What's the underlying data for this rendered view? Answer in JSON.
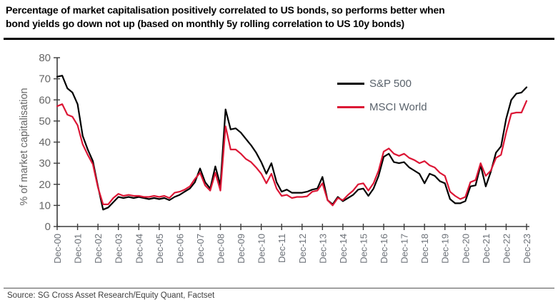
{
  "title_line1": "Percentage of market capitalisation positively correlated to US bonds, so performs better when",
  "title_line2": "bond yields go down not up (based on monthly 5y rolling correlation to US 10y bonds)",
  "source": "Source: SG Cross Asset Research/Equity Quant, Factset",
  "colors": {
    "sp500": "#000000",
    "msci_world": "#dc1635",
    "axis": "#3c3c3c"
  },
  "chart_data": {
    "type": "line",
    "title": "Percentage of market capitalisation positively correlated to US bonds",
    "ylabel": "% of market capitalisation",
    "ylim": [
      0,
      80
    ],
    "yticks": [
      0,
      10,
      20,
      30,
      40,
      50,
      60,
      70,
      80
    ],
    "grid": false,
    "legend_position": "upper-center",
    "x_start": "Dec-00",
    "x_end": "Dec-23",
    "sampling": "quarterly",
    "x_tick_labels": [
      "Dec-00",
      "Dec-01",
      "Dec-02",
      "Dec-03",
      "Dec-04",
      "Dec-05",
      "Dec-06",
      "Dec-07",
      "Dec-08",
      "Dec-09",
      "Dec-10",
      "Dec-11",
      "Dec-12",
      "Dec-13",
      "Dec-14",
      "Dec-15",
      "Dec-16",
      "Dec-17",
      "Dec-18",
      "Dec-19",
      "Dec-20",
      "Dec-21",
      "Dec-22",
      "Dec-23"
    ],
    "series": [
      {
        "name": "S&P 500",
        "color": "#000000",
        "values": [
          71,
          71.5,
          65.5,
          63.5,
          58,
          43,
          36.5,
          31,
          19,
          8,
          9,
          11.5,
          14,
          13.5,
          14,
          13.5,
          14,
          13.5,
          13,
          13.5,
          13,
          13.5,
          12.5,
          14,
          15,
          16.5,
          18,
          21,
          27.5,
          21,
          18,
          28.5,
          19.5,
          55.5,
          46,
          46.5,
          44.5,
          41.5,
          38.5,
          35,
          30.5,
          25,
          30,
          21,
          16.5,
          17.5,
          16,
          16,
          16,
          16.5,
          17.5,
          18,
          23.5,
          12.5,
          10.5,
          14,
          12,
          13.5,
          15,
          17.5,
          18,
          14.5,
          18,
          24,
          33,
          34.5,
          30.5,
          30,
          30.5,
          28,
          26.5,
          25,
          20.5,
          25,
          24,
          21.5,
          20.5,
          13,
          11,
          11,
          12,
          19,
          19.5,
          29,
          19,
          26,
          35,
          38,
          51,
          60,
          63,
          63.5,
          66
        ]
      },
      {
        "name": "MSCI World",
        "color": "#dc1635",
        "values": [
          57,
          58,
          53,
          52,
          48,
          39,
          34,
          29.5,
          18.5,
          10.5,
          10.5,
          13.5,
          15.5,
          14.5,
          15,
          14.5,
          14.5,
          14,
          14,
          14.5,
          14,
          14.5,
          13.5,
          16,
          16.5,
          17.5,
          19,
          22.5,
          25.5,
          19.5,
          17,
          25.5,
          17,
          47.5,
          36.5,
          36.5,
          34.5,
          32,
          30.5,
          28,
          25,
          20.5,
          25,
          18,
          14.5,
          15,
          13.5,
          14,
          14,
          14.3,
          16.5,
          17,
          20.5,
          12.5,
          10,
          13.5,
          12.5,
          15,
          17,
          20,
          20.5,
          17,
          20.5,
          26.5,
          35.5,
          37,
          34.5,
          33.5,
          34.5,
          32.5,
          31.5,
          30,
          31,
          29,
          28,
          25.5,
          24,
          16.5,
          14.5,
          13,
          14,
          21,
          22,
          30,
          24,
          26.5,
          32.5,
          34,
          44.5,
          53.5,
          54,
          54,
          59.5
        ]
      }
    ]
  }
}
